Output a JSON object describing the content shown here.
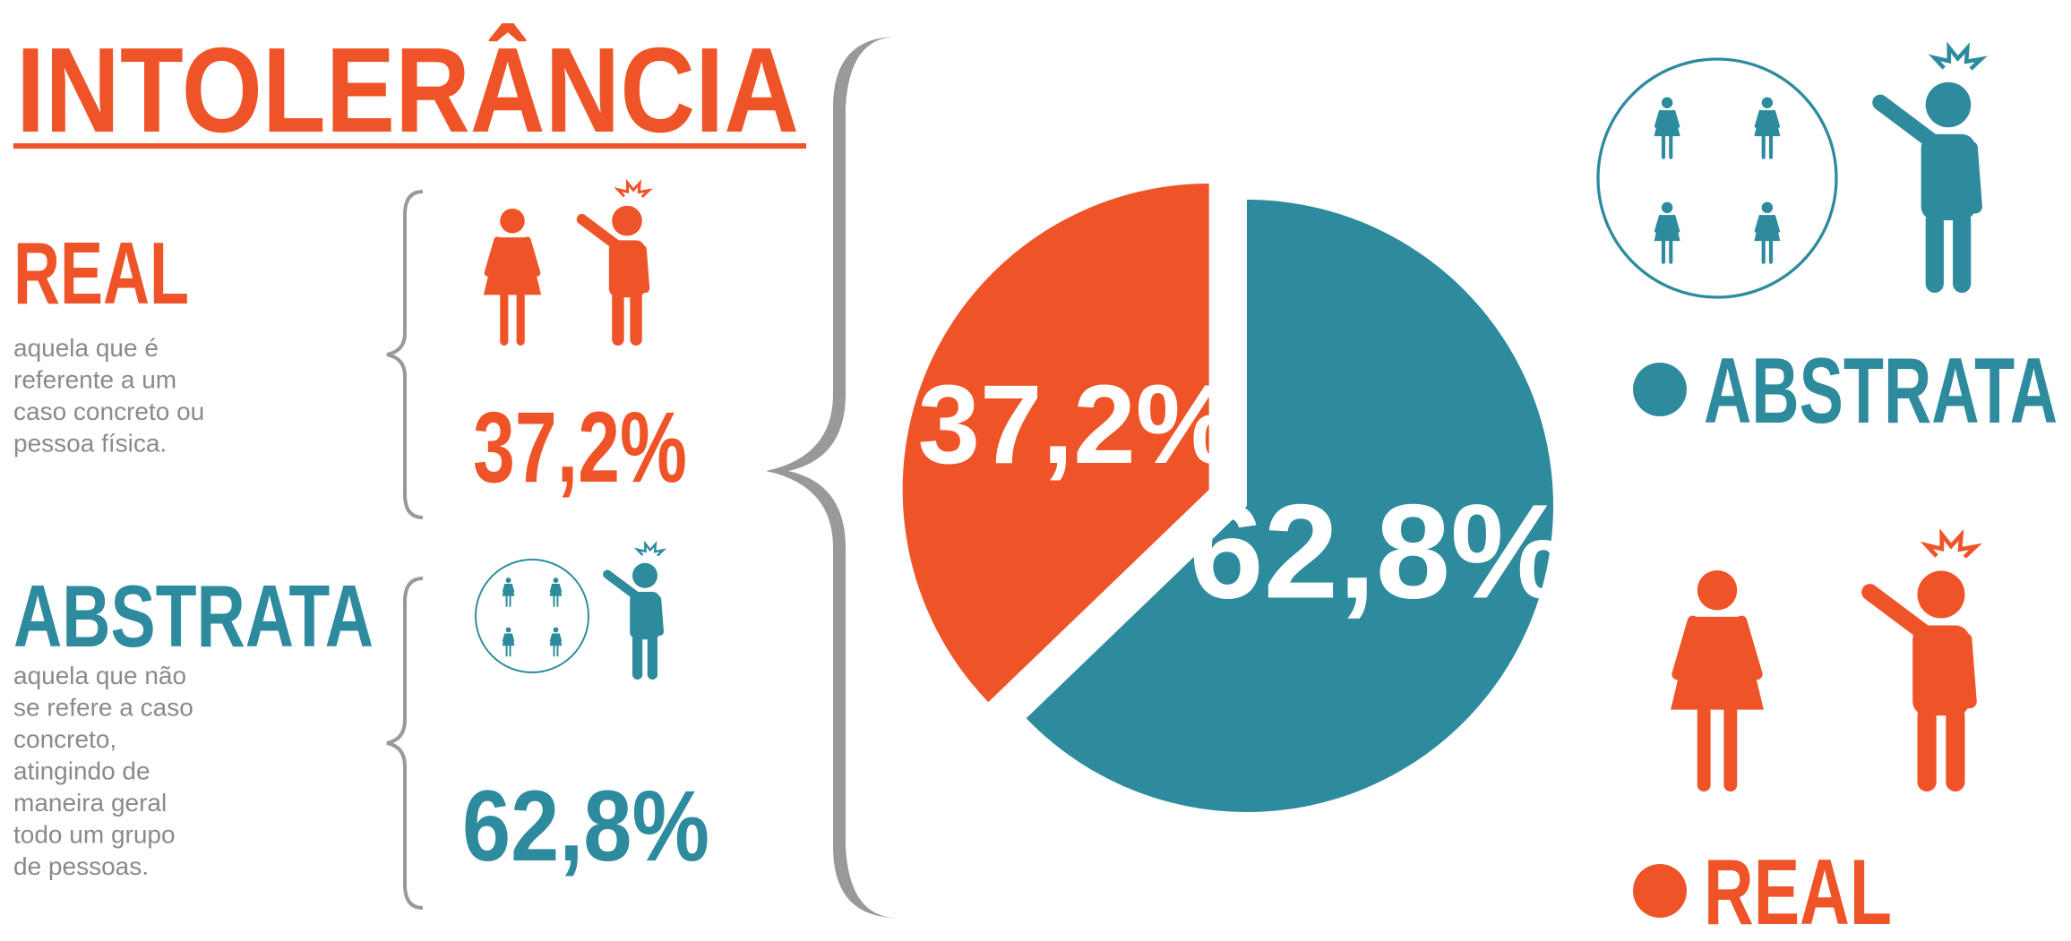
{
  "title": "INTOLERÂNCIA",
  "descriptions": [
    [
      "aquela que não",
      "se refere a caso",
      "concreto,",
      "atingindo de",
      "maneira geral",
      "todo um grupo",
      "de pessoas."
    ],
    [
      "aquela que é",
      "referente a um",
      "caso concreto ou",
      "pessoa física."
    ]
  ],
  "chart_data": {
    "type": "pie",
    "categories": [
      "ABSTRATA",
      "REAL"
    ],
    "values": [
      62.8,
      37.2
    ],
    "value_labels": [
      "62,8%",
      "37,2%"
    ],
    "colors": [
      "#2e8b9e",
      "#ee5427"
    ]
  }
}
